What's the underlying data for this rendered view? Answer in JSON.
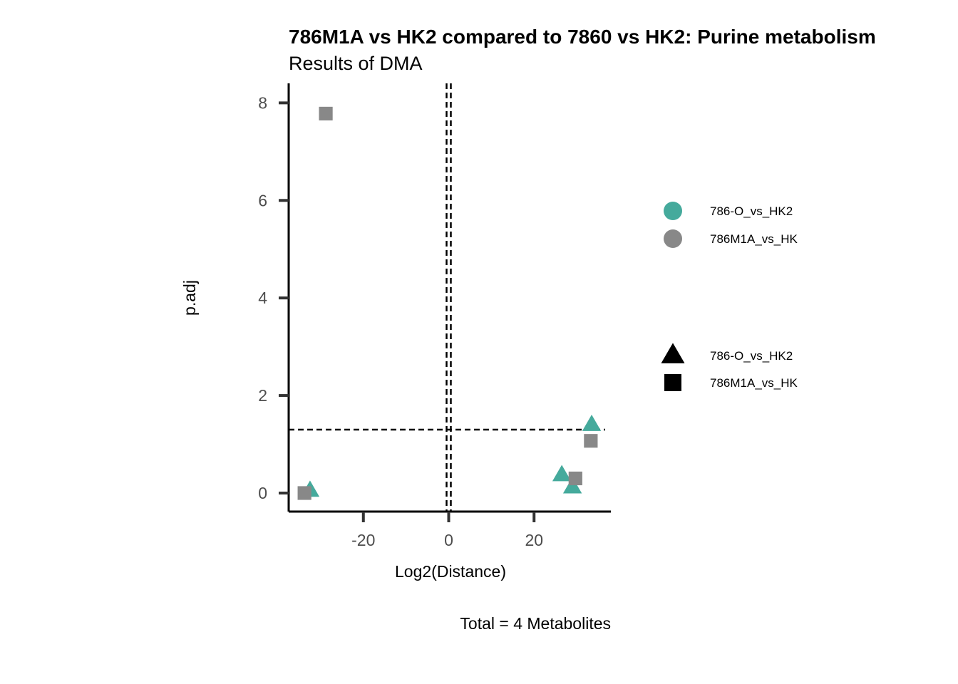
{
  "chart_data": {
    "type": "scatter",
    "title": "786M1A vs HK2 compared to 7860 vs HK2: Purine metabolism",
    "subtitle": "Results of DMA",
    "xlabel": "Log2(Distance)",
    "ylabel": "p.adj",
    "caption": "Total = 4 Metabolites",
    "xlim": [
      -37.5,
      38
    ],
    "ylim": [
      -0.38,
      8.4
    ],
    "xticks": [
      -20,
      0,
      20
    ],
    "xtick_labels": [
      "-20",
      "0",
      "20"
    ],
    "yticks": [
      0,
      2,
      4,
      6,
      8
    ],
    "ytick_labels": [
      "0",
      "2",
      "4",
      "6",
      "8"
    ],
    "grid": false,
    "legend_position": "right",
    "vlines": [
      -0.5,
      0.5
    ],
    "hline": 1.3,
    "colors": {
      "786-O_vs_HK2": "#45aa9c",
      "786M1A_vs_HK": "#888888"
    },
    "color_legend": [
      "786-O_vs_HK2",
      "786M1A_vs_HK"
    ],
    "shape_legend": [
      {
        "label": "786-O_vs_HK2",
        "shape": "triangle"
      },
      {
        "label": "786M1A_vs_HK",
        "shape": "square"
      }
    ],
    "series": [
      {
        "name": "786-O_vs_HK2",
        "shape": "triangle",
        "points": [
          {
            "x": -32.5,
            "y": 0.05
          },
          {
            "x": 26.5,
            "y": 0.37
          },
          {
            "x": 29.0,
            "y": 0.12
          },
          {
            "x": 33.5,
            "y": 1.4
          }
        ]
      },
      {
        "name": "786M1A_vs_HK",
        "shape": "square",
        "points": [
          {
            "x": -33.8,
            "y": 0.0
          },
          {
            "x": -28.8,
            "y": 7.78
          },
          {
            "x": 29.7,
            "y": 0.3
          },
          {
            "x": 33.3,
            "y": 1.07
          }
        ]
      }
    ]
  }
}
